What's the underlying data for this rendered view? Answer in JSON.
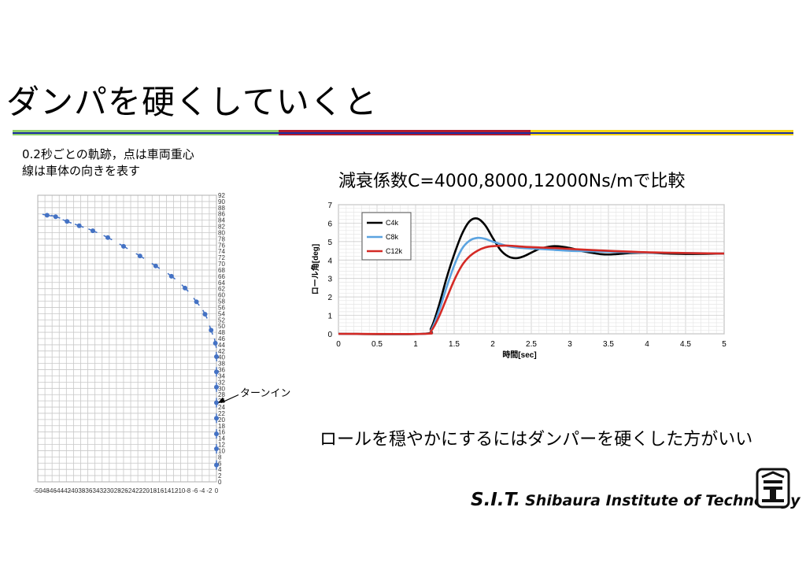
{
  "slide": {
    "title": "ダンパを硬くしていくと",
    "caption_line1": "0.2秒ごとの軌跡，点は車両重心",
    "caption_line2": "線は車体の向きを表す",
    "chart_title": "減衰係数C=4000,8000,12000Ns/mで比較",
    "conclusion": "ロールを穏やかにするにはダンパーを硬くした方がいい",
    "footer_sit": "S.I.T.",
    "footer_name": "Shibaura Institute of Technology"
  },
  "colors": {
    "bar_green": "#8dcd69",
    "bar_red": "#b01c2e",
    "bar_yellow": "#f4d515",
    "bar_blue": "#1c2ea0",
    "trajectory": "#4472c4"
  },
  "chart_data": [
    {
      "type": "scatter",
      "title": "",
      "xlabel": "",
      "ylabel": "",
      "xlim": [
        -50,
        0
      ],
      "ylim": [
        0,
        92
      ],
      "x_ticks": [
        -50,
        -48,
        -46,
        -44,
        -42,
        -40,
        -38,
        -36,
        -34,
        -32,
        -30,
        -28,
        -26,
        -24,
        -22,
        -20,
        -18,
        -16,
        -14,
        -12,
        -10,
        -8,
        -6,
        -4,
        -2,
        0
      ],
      "y_ticks": [
        0,
        2,
        4,
        6,
        8,
        10,
        12,
        14,
        16,
        18,
        20,
        22,
        24,
        26,
        28,
        30,
        32,
        34,
        36,
        38,
        40,
        42,
        44,
        46,
        48,
        50,
        52,
        54,
        56,
        58,
        60,
        62,
        64,
        66,
        68,
        70,
        72,
        74,
        76,
        78,
        80,
        82,
        84,
        86,
        88,
        90,
        92
      ],
      "grid": true,
      "annotation": "ターンイン",
      "annotation_target": [
        0,
        25.4
      ],
      "series": [
        {
          "name": "trajectory",
          "x": [
            0,
            0,
            0,
            0,
            0,
            0,
            0,
            0,
            -0.3,
            -1.5,
            -3.2,
            -5.6,
            -8.8,
            -12.6,
            -17.0,
            -21.4,
            -26.0,
            -30.4,
            -34.6,
            -38.4,
            -41.8,
            -45.0,
            -47.4
          ],
          "y": [
            5.4,
            10.6,
            15.4,
            20.4,
            25.4,
            30.4,
            35.3,
            40.2,
            44.5,
            48.7,
            53.8,
            57.8,
            62.2,
            66.0,
            69.3,
            72.5,
            75.6,
            78.4,
            80.6,
            82.2,
            83.6,
            85.1,
            85.6
          ]
        }
      ]
    },
    {
      "type": "line",
      "title": "",
      "xlabel": "時間[sec]",
      "ylabel": "ロール角[deg]",
      "xlim": [
        0,
        5
      ],
      "ylim": [
        0,
        7
      ],
      "x_ticks": [
        0,
        0.5,
        1,
        1.5,
        2,
        2.5,
        3,
        3.5,
        4,
        4.5,
        5
      ],
      "y_ticks": [
        0,
        1,
        2,
        3,
        4,
        5,
        6,
        7
      ],
      "grid": true,
      "legend": "top-left",
      "series": [
        {
          "name": "C4k",
          "color": "#000000",
          "x": [
            0,
            1.1,
            1.2,
            1.3,
            1.4,
            1.5,
            1.6,
            1.7,
            1.8,
            1.9,
            2.0,
            2.1,
            2.2,
            2.3,
            2.4,
            2.5,
            2.6,
            2.7,
            2.8,
            2.9,
            3.0,
            3.1,
            3.2,
            3.3,
            3.4,
            3.5,
            3.6,
            3.8,
            4.0,
            4.2,
            4.5,
            5.0
          ],
          "y": [
            0,
            0,
            0.3,
            1.5,
            3.0,
            4.3,
            5.4,
            6.1,
            6.25,
            5.9,
            5.2,
            4.55,
            4.2,
            4.1,
            4.2,
            4.4,
            4.6,
            4.7,
            4.75,
            4.72,
            4.65,
            4.55,
            4.45,
            4.38,
            4.32,
            4.3,
            4.32,
            4.38,
            4.4,
            4.36,
            4.33,
            4.35
          ]
        },
        {
          "name": "C8k",
          "color": "#5ba3e0",
          "x": [
            0,
            1.1,
            1.2,
            1.3,
            1.4,
            1.5,
            1.6,
            1.7,
            1.8,
            1.9,
            2.0,
            2.2,
            2.4,
            2.6,
            2.8,
            3.0,
            3.2,
            3.5,
            4.0,
            4.5,
            5.0
          ],
          "y": [
            0,
            0,
            0.2,
            1.2,
            2.5,
            3.7,
            4.6,
            5.05,
            5.2,
            5.15,
            5.0,
            4.75,
            4.65,
            4.6,
            4.55,
            4.5,
            4.48,
            4.45,
            4.4,
            4.38,
            4.35
          ]
        },
        {
          "name": "C12k",
          "color": "#d42a25",
          "x": [
            0,
            1.1,
            1.2,
            1.3,
            1.4,
            1.5,
            1.6,
            1.7,
            1.8,
            1.9,
            2.0,
            2.2,
            2.4,
            2.6,
            2.8,
            3.0,
            3.5,
            4.0,
            4.5,
            5.0
          ],
          "y": [
            0,
            0,
            0.15,
            0.9,
            1.9,
            2.9,
            3.7,
            4.2,
            4.5,
            4.68,
            4.75,
            4.78,
            4.72,
            4.68,
            4.65,
            4.6,
            4.5,
            4.42,
            4.38,
            4.35
          ]
        }
      ]
    }
  ]
}
